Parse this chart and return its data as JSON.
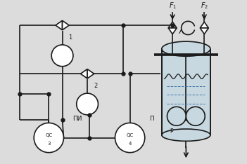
{
  "bg_color": "#dcdcdc",
  "line_color": "#1a1a1a",
  "lw": 1.2,
  "labels": {
    "F1": "$F_1$",
    "F2": "$F_2$",
    "v1": "1",
    "v2": "2",
    "QC3_top": "QC",
    "QC3_bot": "3",
    "QC4_top": "QC",
    "QC4_bot": "4",
    "PI": "ПИ",
    "P": "П",
    "p_label": "р"
  }
}
